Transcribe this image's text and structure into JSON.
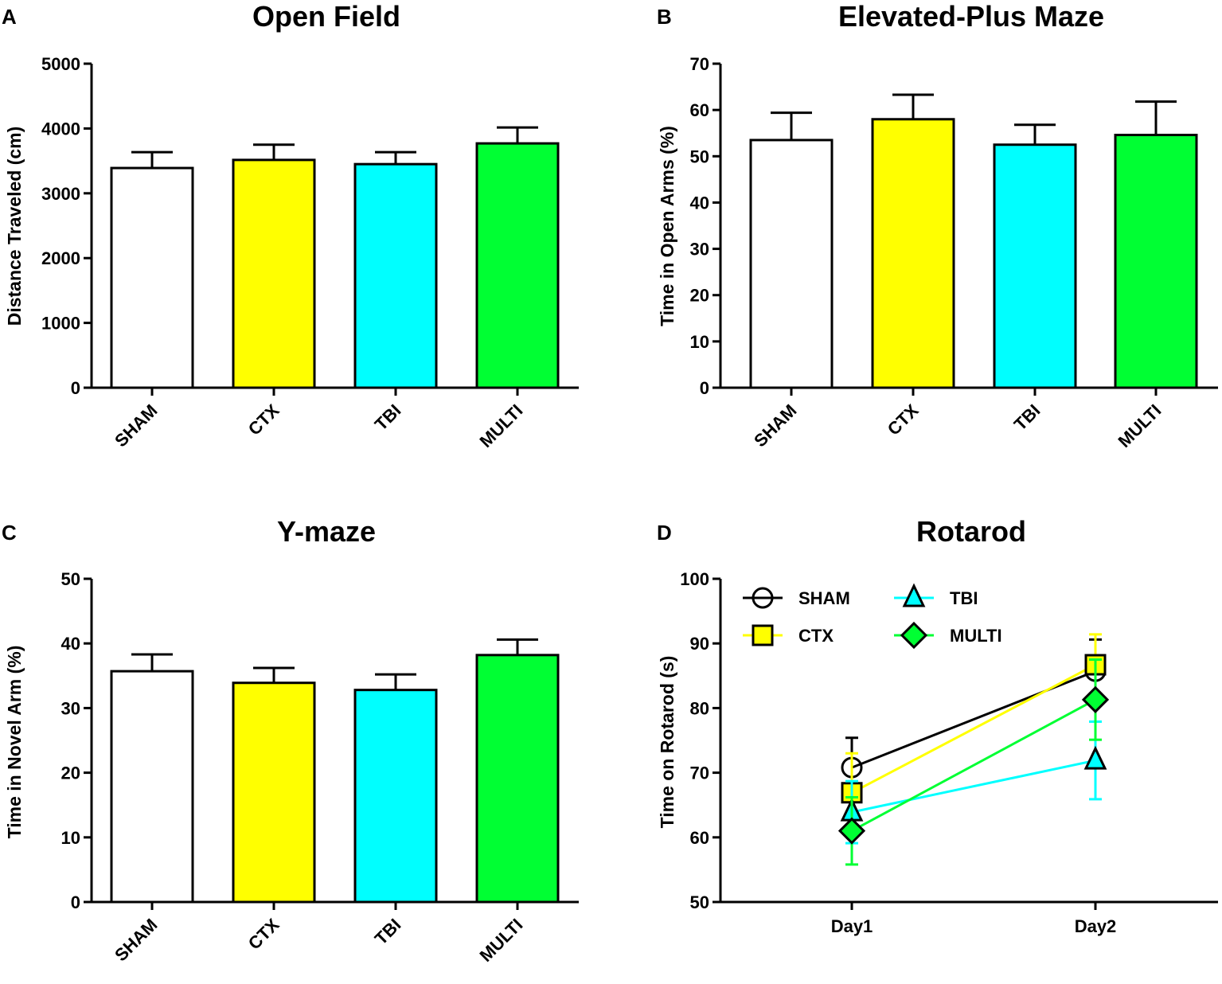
{
  "colors": {
    "SHAM": "#ffffff",
    "CTX": "#ffff00",
    "TBI": "#00ffff",
    "MULTI": "#00ff33",
    "axis": "#000000"
  },
  "chart_data": [
    {
      "panel": "A",
      "type": "bar",
      "title": "Open Field",
      "xlabel": "",
      "ylabel": "Distance Traveled (cm)",
      "ylim": [
        0,
        5000
      ],
      "yticks": [
        0,
        1000,
        2000,
        3000,
        4000,
        5000
      ],
      "categories": [
        "SHAM",
        "CTX",
        "TBI",
        "MULTI"
      ],
      "values": [
        3390,
        3515,
        3450,
        3770
      ],
      "errors": [
        245,
        235,
        185,
        245
      ]
    },
    {
      "panel": "B",
      "type": "bar",
      "title": "Elevated-Plus Maze",
      "xlabel": "",
      "ylabel": "Time in Open Arms (%)",
      "ylim": [
        0,
        70
      ],
      "yticks": [
        0,
        10,
        20,
        30,
        40,
        50,
        60,
        70
      ],
      "categories": [
        "SHAM",
        "CTX",
        "TBI",
        "MULTI"
      ],
      "values": [
        53.5,
        58.0,
        52.5,
        54.6
      ],
      "errors": [
        5.9,
        5.3,
        4.3,
        7.2
      ]
    },
    {
      "panel": "C",
      "type": "bar",
      "title": "Y-maze",
      "xlabel": "",
      "ylabel": "Time in Novel Arm (%)",
      "ylim": [
        0,
        50
      ],
      "yticks": [
        0,
        10,
        20,
        30,
        40,
        50
      ],
      "categories": [
        "SHAM",
        "CTX",
        "TBI",
        "MULTI"
      ],
      "values": [
        35.7,
        33.9,
        32.8,
        38.2
      ],
      "errors": [
        2.6,
        2.3,
        2.4,
        2.4
      ]
    },
    {
      "panel": "D",
      "type": "line",
      "title": "Rotarod",
      "xlabel": "",
      "ylabel": "Time on Rotarod (s)",
      "ylim": [
        50,
        100
      ],
      "yticks": [
        50,
        60,
        70,
        80,
        90,
        100
      ],
      "categories": [
        "Day1",
        "Day2"
      ],
      "legend": "top-left",
      "series": [
        {
          "name": "SHAM",
          "marker": "circle",
          "values": [
            70.8,
            85.7
          ],
          "errors": [
            4.6,
            4.9
          ]
        },
        {
          "name": "CTX",
          "marker": "square",
          "values": [
            66.9,
            86.7
          ],
          "errors": [
            6.1,
            4.7
          ]
        },
        {
          "name": "TBI",
          "marker": "triangle",
          "values": [
            63.9,
            71.9
          ],
          "errors": [
            4.8,
            6.0
          ]
        },
        {
          "name": "MULTI",
          "marker": "diamond",
          "values": [
            61.0,
            81.3
          ],
          "errors": [
            5.2,
            6.2
          ]
        }
      ]
    }
  ]
}
